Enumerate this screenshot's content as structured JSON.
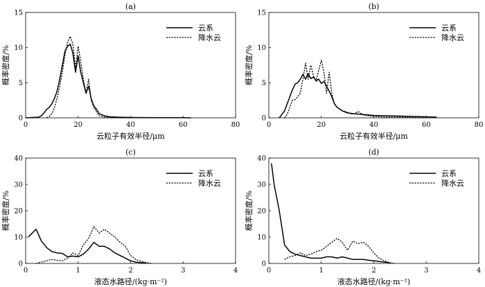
{
  "chart_data": [
    {
      "type": "line",
      "panel_label": "(a)",
      "xlabel": "云粒子有效半径/μm",
      "ylabel": "概率密度/%",
      "xlim": [
        0,
        80
      ],
      "ylim": [
        0,
        15
      ],
      "xticks": [
        "0",
        "20",
        "40",
        "60",
        "80"
      ],
      "yticks": [
        "0",
        "5",
        "10",
        "15"
      ],
      "legend_position": "top-right",
      "series": [
        {
          "name": "云系",
          "style": "solid",
          "x": [
            0,
            5,
            6,
            7,
            8,
            9,
            10,
            11,
            12,
            13,
            14,
            15,
            16,
            17,
            18,
            19,
            20,
            21,
            22,
            23,
            24,
            25,
            26,
            27,
            28,
            30,
            32,
            35,
            40,
            50,
            60,
            63
          ],
          "y": [
            0,
            0.1,
            0.3,
            0.7,
            1.2,
            1.5,
            2.0,
            2.8,
            3.8,
            5.5,
            7.5,
            9.5,
            10.2,
            10.5,
            9.2,
            6.5,
            8.8,
            6.5,
            5.0,
            3.5,
            4.5,
            2.7,
            1.7,
            1.2,
            0.6,
            0.3,
            0.15,
            0.1,
            0.05,
            0.03,
            0.02,
            0
          ]
        },
        {
          "name": "降水云",
          "style": "dashed",
          "x": [
            8,
            9,
            10,
            11,
            12,
            13,
            14,
            15,
            16,
            17,
            18,
            19,
            20,
            21,
            22,
            23,
            24,
            25,
            26,
            27,
            28,
            30,
            32,
            35,
            40
          ],
          "y": [
            0,
            0.2,
            0.6,
            1.5,
            2.8,
            4.5,
            6.5,
            9.0,
            10.8,
            11.6,
            10.5,
            7.0,
            10.2,
            8.0,
            5.5,
            3.5,
            5.5,
            2.5,
            1.5,
            0.8,
            0.3,
            0.1,
            0.05,
            0.02,
            0
          ]
        }
      ]
    },
    {
      "type": "line",
      "panel_label": "(b)",
      "xlabel": "云粒子有效半径/μm",
      "ylabel": "概率密度/%",
      "xlim": [
        0,
        80
      ],
      "ylim": [
        0,
        15
      ],
      "xticks": [
        "0",
        "20",
        "40",
        "60",
        "80"
      ],
      "yticks": [
        "0",
        "5",
        "10",
        "15"
      ],
      "legend_position": "top-right",
      "series": [
        {
          "name": "云系",
          "style": "solid",
          "x": [
            4,
            5,
            6,
            7,
            8,
            9,
            10,
            11,
            12,
            13,
            14,
            15,
            16,
            17,
            18,
            19,
            20,
            21,
            22,
            23,
            24,
            25,
            26,
            28,
            30,
            32,
            35,
            38,
            40,
            45,
            50,
            55,
            60,
            64
          ],
          "y": [
            0,
            0.5,
            1.0,
            2.0,
            3.0,
            4.0,
            4.8,
            5.0,
            5.5,
            6.2,
            5.5,
            6.3,
            5.6,
            5.8,
            5.3,
            5.5,
            4.9,
            5.2,
            4.5,
            3.8,
            3.0,
            2.0,
            1.5,
            1.0,
            0.7,
            0.6,
            0.5,
            0.4,
            0.35,
            0.3,
            0.25,
            0.2,
            0.15,
            0.1
          ]
        },
        {
          "name": "降水云",
          "style": "dashed",
          "x": [
            6,
            7,
            8,
            9,
            10,
            11,
            12,
            13,
            14,
            15,
            16,
            17,
            18,
            19,
            20,
            21,
            22,
            23,
            24,
            25,
            26,
            28,
            30,
            32,
            34,
            36,
            38,
            40,
            45,
            50,
            55,
            60
          ],
          "y": [
            0,
            0.5,
            1.5,
            2.5,
            2.6,
            3.0,
            3.5,
            5.5,
            7.8,
            5.5,
            7.5,
            6.0,
            5.2,
            6.8,
            8.2,
            6.5,
            3.5,
            6.5,
            3.5,
            2.0,
            1.5,
            1.0,
            0.8,
            0.5,
            0.9,
            0.4,
            0.3,
            0.2,
            0.1,
            0.1,
            0.05,
            0
          ]
        }
      ]
    },
    {
      "type": "line",
      "panel_label": "(c)",
      "xlabel": "液态水路径/(kg·m⁻²)",
      "ylabel": "概率密度/%",
      "xlim": [
        0,
        4
      ],
      "ylim": [
        0,
        40
      ],
      "xticks": [
        "0",
        "1",
        "2",
        "3",
        "4"
      ],
      "yticks": [
        "0",
        "10",
        "20",
        "30",
        "40"
      ],
      "legend_position": "top-right",
      "series": [
        {
          "name": "云系",
          "style": "solid",
          "x": [
            0.05,
            0.1,
            0.2,
            0.3,
            0.4,
            0.5,
            0.6,
            0.7,
            0.8,
            0.9,
            1.0,
            1.1,
            1.2,
            1.3,
            1.4,
            1.5,
            1.6,
            1.7,
            1.8,
            1.9,
            2.0,
            2.1,
            2.2,
            2.3
          ],
          "y": [
            10,
            11,
            13,
            8.5,
            6,
            4.5,
            4,
            3.8,
            2.5,
            2.8,
            2.5,
            3.5,
            5.5,
            8.0,
            6.5,
            6.5,
            5.5,
            4.0,
            3.0,
            2.0,
            1.0,
            0.5,
            0.3,
            0.2
          ]
        },
        {
          "name": "降水云",
          "style": "dashed",
          "x": [
            0.2,
            0.3,
            0.4,
            0.5,
            0.6,
            0.7,
            0.8,
            0.9,
            1.0,
            1.1,
            1.2,
            1.3,
            1.4,
            1.5,
            1.6,
            1.7,
            1.8,
            1.9,
            2.0,
            2.1,
            2.2,
            2.3,
            2.4
          ],
          "y": [
            0,
            0.5,
            1.0,
            1.5,
            1.2,
            1.0,
            2.0,
            4.0,
            3.0,
            7.0,
            9.5,
            14.0,
            11.5,
            13.0,
            11.5,
            10.0,
            8.0,
            6.5,
            3.0,
            1.5,
            0.8,
            0.3,
            0
          ]
        }
      ]
    },
    {
      "type": "line",
      "panel_label": "(d)",
      "xlabel": "液态水路径/(kg·m⁻²)",
      "ylabel": "概率密度/%",
      "xlim": [
        0,
        4
      ],
      "ylim": [
        0,
        40
      ],
      "xticks": [
        "0",
        "1",
        "2",
        "3",
        "4"
      ],
      "yticks": [
        "0",
        "10",
        "20",
        "30",
        "40"
      ],
      "legend_position": "top-right",
      "series": [
        {
          "name": "云系",
          "style": "solid",
          "x": [
            0.05,
            0.1,
            0.2,
            0.3,
            0.4,
            0.5,
            0.6,
            0.7,
            0.8,
            0.9,
            1.0,
            1.1,
            1.2,
            1.3,
            1.4,
            1.5,
            1.6,
            1.7,
            1.8,
            1.9,
            2.0,
            2.1,
            2.2,
            2.3
          ],
          "y": [
            38,
            30,
            20,
            7,
            4.5,
            3.5,
            3.0,
            2.5,
            2.0,
            2.0,
            2.0,
            2.5,
            2.5,
            2.0,
            2.5,
            2.0,
            1.5,
            1.5,
            1.5,
            1.2,
            1.0,
            0.7,
            0.5,
            0.3
          ]
        },
        {
          "name": "降水云",
          "style": "dashed",
          "x": [
            0.3,
            0.4,
            0.5,
            0.6,
            0.7,
            0.8,
            0.9,
            1.0,
            1.1,
            1.2,
            1.3,
            1.4,
            1.5,
            1.6,
            1.7,
            1.8,
            1.9,
            2.0,
            2.1,
            2.2,
            2.3,
            2.4
          ],
          "y": [
            1.5,
            2.5,
            3.0,
            4.0,
            3.0,
            3.5,
            4.5,
            5.0,
            6.5,
            8.0,
            9.5,
            8.0,
            5.0,
            8.5,
            7.5,
            8.0,
            6.5,
            4.0,
            2.0,
            1.0,
            0.3,
            0
          ]
        }
      ]
    }
  ]
}
